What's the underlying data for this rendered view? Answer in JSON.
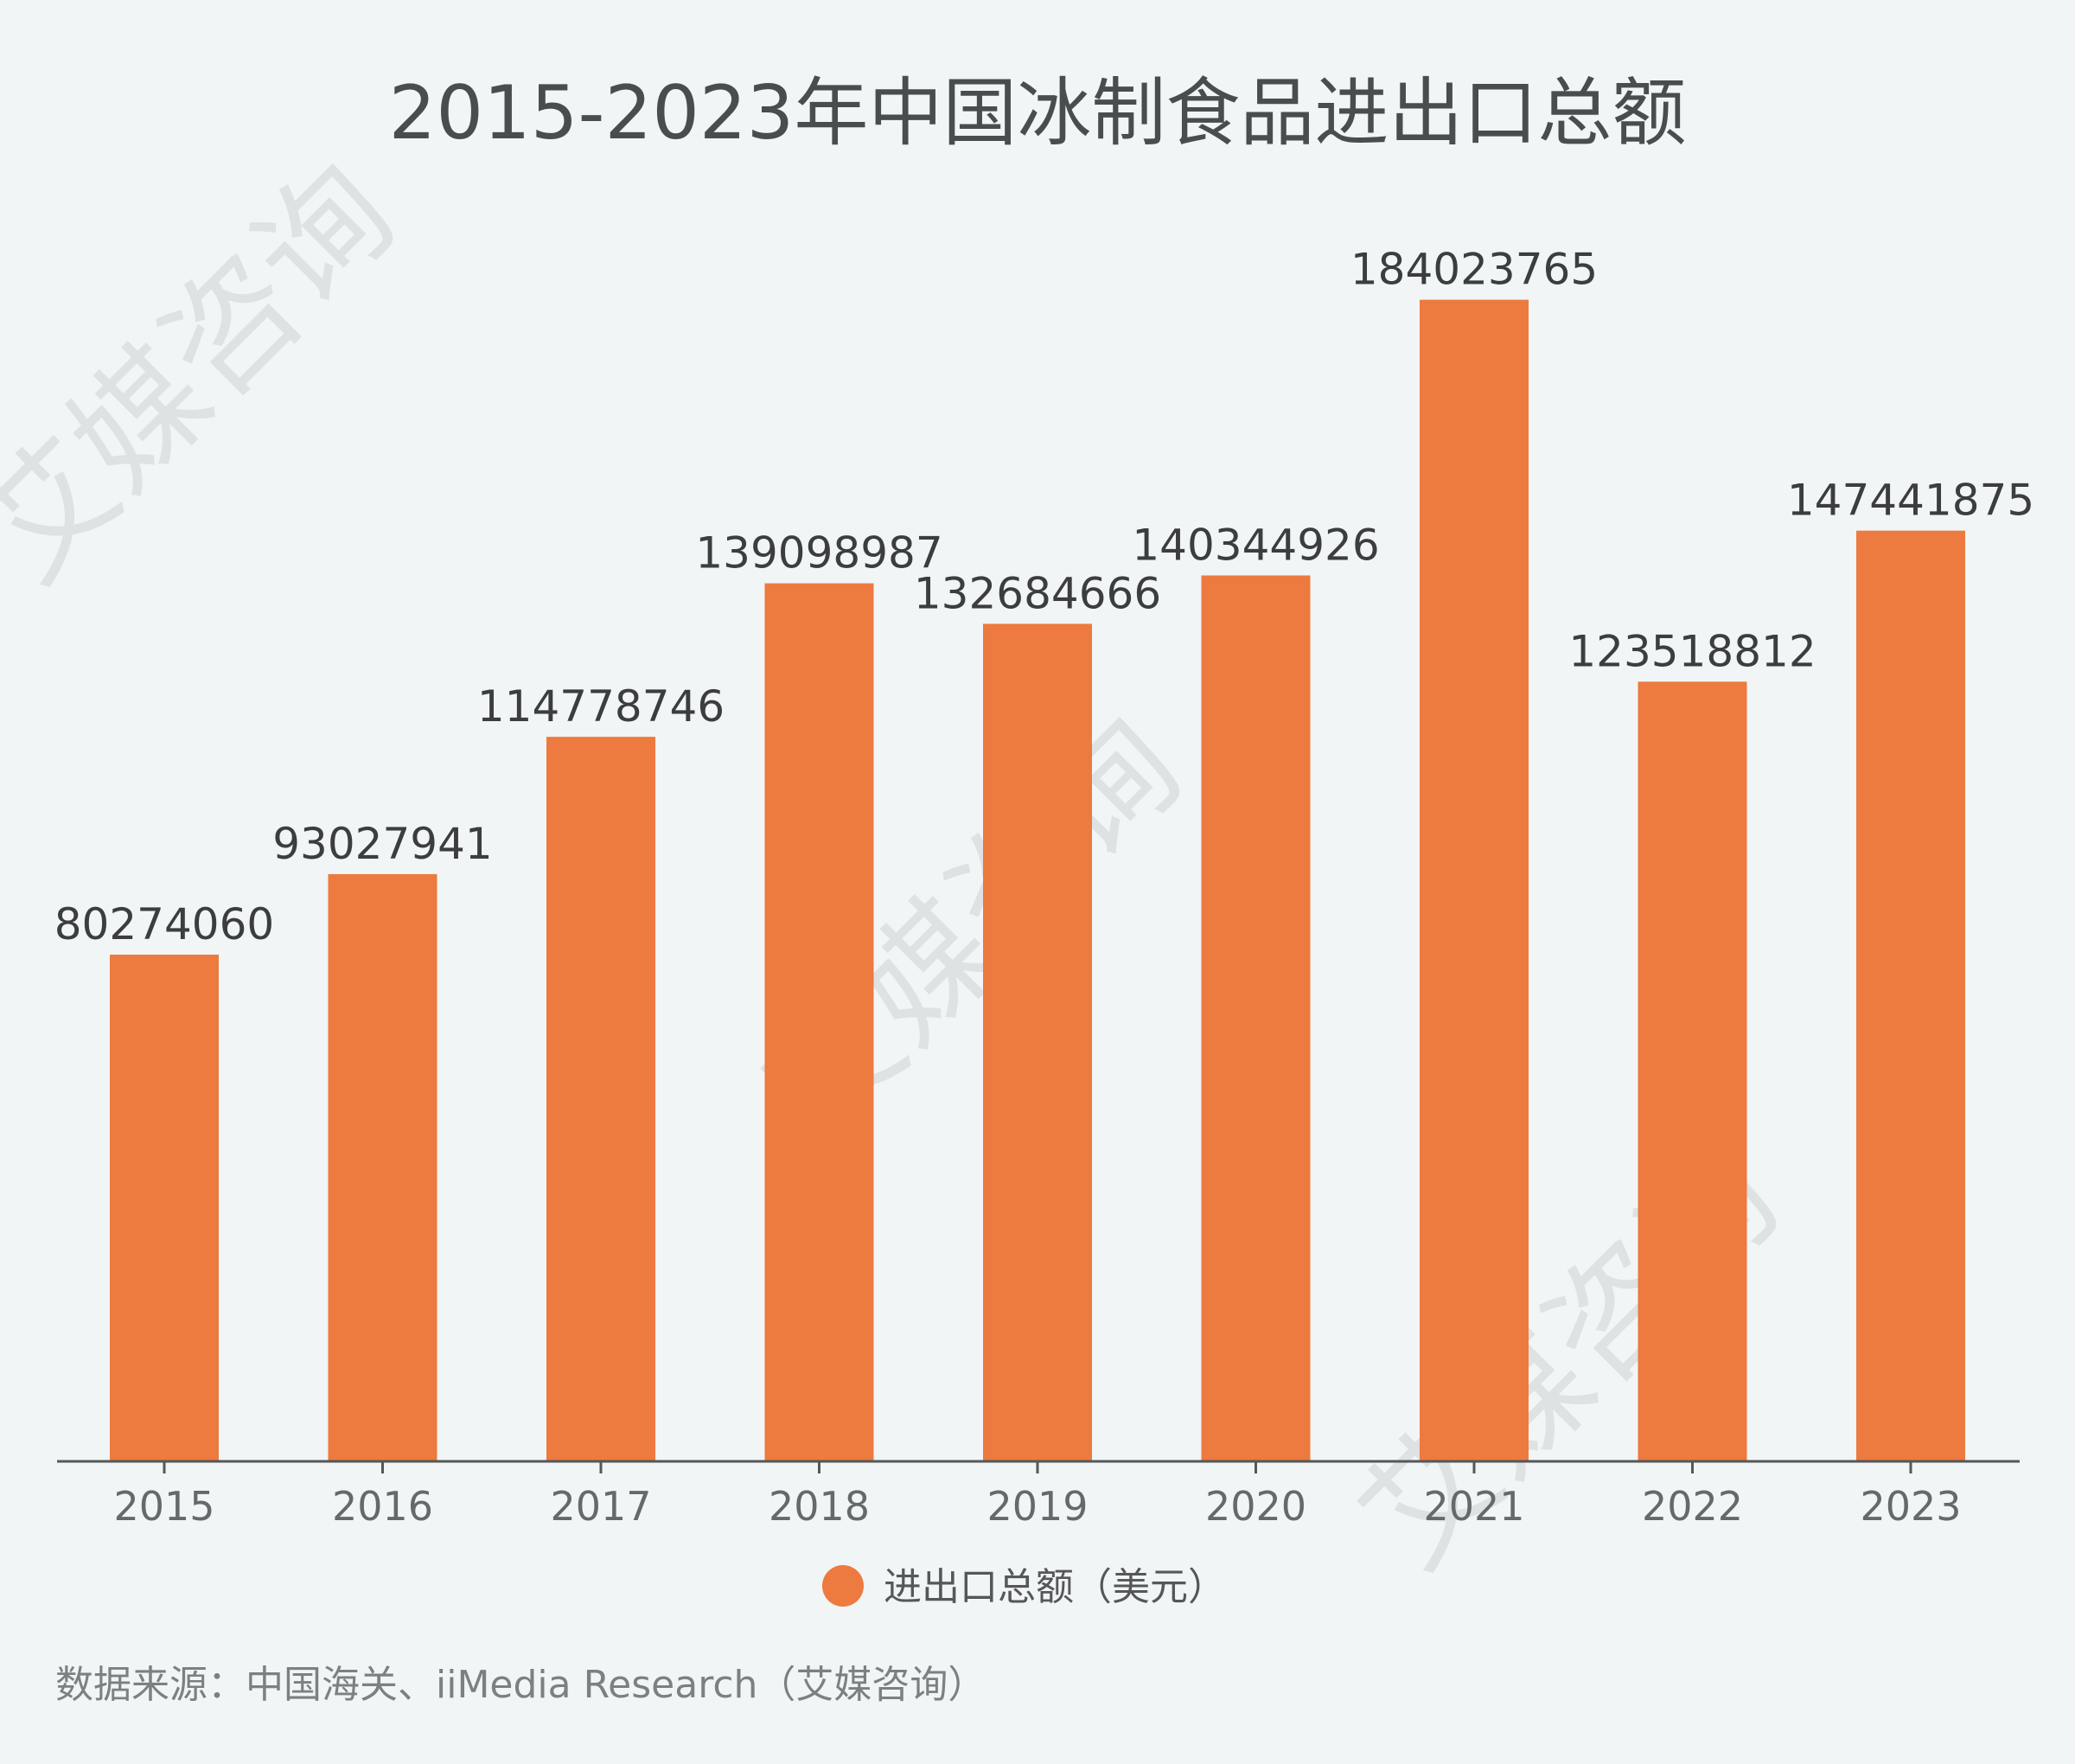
{
  "chart_data": {
    "type": "bar",
    "title": "2015-2023年中国冰制食品进出口总额",
    "categories": [
      "2015",
      "2016",
      "2017",
      "2018",
      "2019",
      "2020",
      "2021",
      "2022",
      "2023"
    ],
    "series": [
      {
        "name": "进出口总额（美元）",
        "values": [
          80274060,
          93027941,
          114778746,
          139098987,
          132684666,
          140344926,
          184023765,
          123518812,
          147441875
        ],
        "color": "#ed7a3e"
      }
    ],
    "xlabel": "",
    "ylabel": "",
    "ylim": [
      0,
      200000000
    ],
    "grid": false,
    "legend": "bottom-center",
    "data_labels": true
  },
  "source": "数据来源：中国海关、iiMedia Research（艾媒咨询）",
  "watermark": "艾媒咨询",
  "colors": {
    "bar": "#ed7a3e",
    "background": "#f1f5f5",
    "axis": "#555759"
  }
}
